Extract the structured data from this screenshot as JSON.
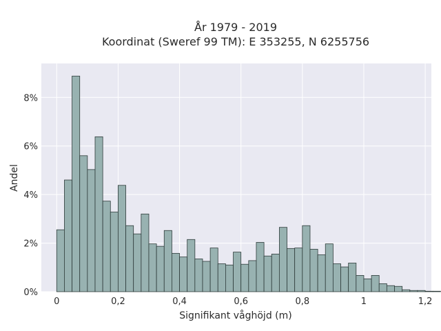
{
  "chart_data": {
    "type": "bar",
    "title_line1": "År 1979 - 2019",
    "title_line2": "Koordinat (Sweref 99 TM): E 353255, N 6255756",
    "xlabel": "Signifikant våghöjd (m)",
    "ylabel": "Andel",
    "xlim": [
      -0.05,
      1.22
    ],
    "ylim": [
      0,
      9.4
    ],
    "grid": true,
    "bin_width": 0.025,
    "bin_start": 0.0125,
    "values": [
      2.55,
      4.6,
      8.88,
      5.6,
      5.03,
      6.38,
      3.73,
      3.28,
      4.38,
      2.72,
      2.38,
      3.2,
      1.97,
      1.87,
      2.52,
      1.58,
      1.43,
      2.15,
      1.35,
      1.25,
      1.8,
      1.15,
      1.1,
      1.63,
      1.13,
      1.28,
      2.03,
      1.47,
      1.55,
      2.65,
      1.78,
      1.8,
      2.72,
      1.75,
      1.52,
      1.97,
      1.15,
      1.02,
      1.18,
      0.67,
      0.53,
      0.67,
      0.33,
      0.25,
      0.22,
      0.08,
      0.05,
      0.05,
      0.02,
      0.02
    ],
    "x_ticks": [
      {
        "value": 0,
        "label": "0"
      },
      {
        "value": 0.2,
        "label": "0,2"
      },
      {
        "value": 0.4,
        "label": "0,4"
      },
      {
        "value": 0.6,
        "label": "0,6"
      },
      {
        "value": 0.8,
        "label": "0,8"
      },
      {
        "value": 1.0,
        "label": "1"
      },
      {
        "value": 1.2,
        "label": "1,2"
      }
    ],
    "y_ticks": [
      {
        "value": 0,
        "label": "0%"
      },
      {
        "value": 2,
        "label": "2%"
      },
      {
        "value": 4,
        "label": "4%"
      },
      {
        "value": 6,
        "label": "6%"
      },
      {
        "value": 8,
        "label": "8%"
      }
    ],
    "colors": {
      "bar_fill": "#98b2b1",
      "bar_stroke": "#2e3b3a",
      "plot_bg": "#e9e9f2",
      "grid": "#ffffff"
    }
  }
}
